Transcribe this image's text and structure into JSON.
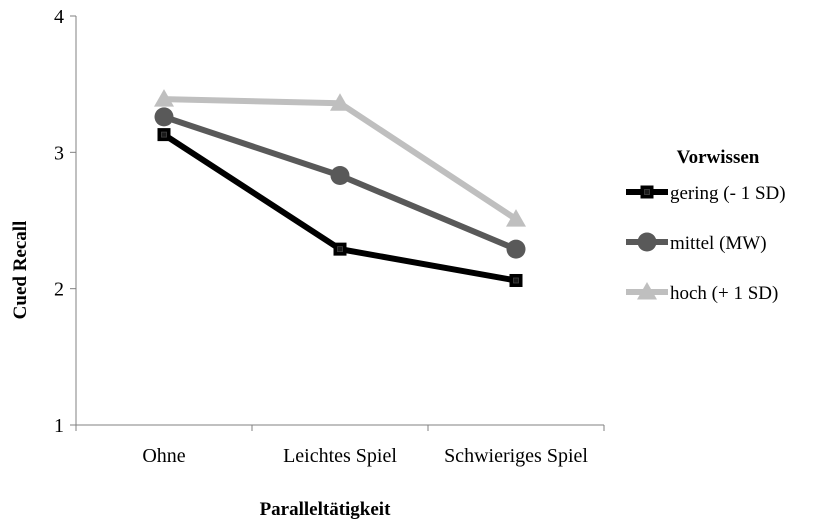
{
  "chart_data": {
    "type": "line",
    "xlabel": "Paralleltätigkeit",
    "ylabel": "Cued Recall",
    "categories": [
      "Ohne",
      "Leichtes Spiel",
      "Schwieriges Spiel"
    ],
    "ylim": [
      1,
      4
    ],
    "yticks": [
      "1",
      "2",
      "3",
      "4"
    ],
    "grid": false,
    "legend": {
      "title": "Vorwissen",
      "position": "right"
    },
    "series": [
      {
        "name": "gering (- 1 SD)",
        "values": [
          3.13,
          2.29,
          2.06
        ],
        "color": "#000000",
        "marker": "square"
      },
      {
        "name": "mittel (MW)",
        "values": [
          3.26,
          2.83,
          2.29
        ],
        "color": "#595959",
        "marker": "circle"
      },
      {
        "name": "hoch (+ 1 SD)",
        "values": [
          3.39,
          3.36,
          2.51
        ],
        "color": "#bfbfbf",
        "marker": "triangle"
      }
    ]
  }
}
